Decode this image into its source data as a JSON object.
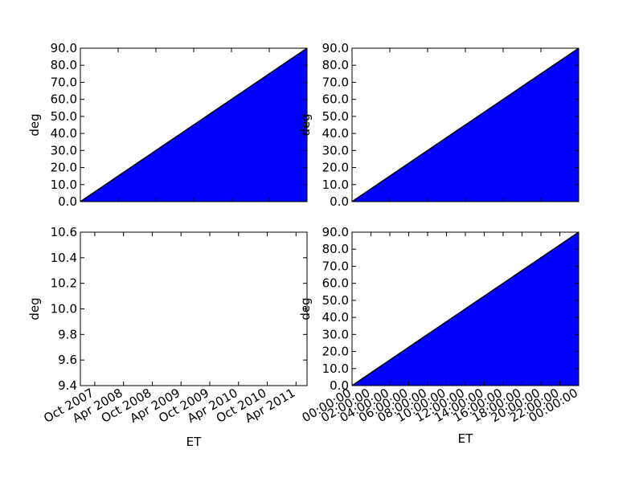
{
  "figure": {
    "background": "#ffffff",
    "fill_color": "#0000ff",
    "line_color": "#000000"
  },
  "chart_data": [
    {
      "id": "top-left",
      "type": "area",
      "xlabel": "",
      "ylabel": "deg",
      "ylim": [
        0,
        90
      ],
      "yticks": [
        "0.0",
        "10.0",
        "20.0",
        "30.0",
        "40.0",
        "50.0",
        "60.0",
        "70.0",
        "80.0",
        "90.0"
      ],
      "x_tick_labels_shown": false,
      "series": [
        {
          "x": [
            0,
            1
          ],
          "y": [
            0,
            90
          ]
        }
      ]
    },
    {
      "id": "top-right",
      "type": "area",
      "xlabel": "",
      "ylabel": "deg",
      "ylim": [
        0,
        90
      ],
      "yticks": [
        "0.0",
        "10.0",
        "20.0",
        "30.0",
        "40.0",
        "50.0",
        "60.0",
        "70.0",
        "80.0",
        "90.0"
      ],
      "x_tick_labels_shown": false,
      "series": [
        {
          "x": [
            0,
            1
          ],
          "y": [
            0,
            90
          ]
        }
      ]
    },
    {
      "id": "bottom-left",
      "type": "area",
      "xlabel": "ET",
      "ylabel": "deg",
      "ylim": [
        9.4,
        10.6
      ],
      "yticks": [
        "9.4",
        "9.6",
        "9.8",
        "10.0",
        "10.2",
        "10.4",
        "10.6"
      ],
      "xlim": [
        "2007-07",
        "2011-06"
      ],
      "xticks": [
        "Oct 2007",
        "Apr 2008",
        "Oct 2008",
        "Apr 2009",
        "Oct 2009",
        "Apr 2010",
        "Oct 2010",
        "Apr 2011"
      ],
      "series": []
    },
    {
      "id": "bottom-right",
      "type": "area",
      "xlabel": "ET",
      "ylabel": "deg",
      "ylim": [
        0,
        90
      ],
      "yticks": [
        "0.0",
        "10.0",
        "20.0",
        "30.0",
        "40.0",
        "50.0",
        "60.0",
        "70.0",
        "80.0",
        "90.0"
      ],
      "xticks": [
        "00:00:00",
        "02:00:00",
        "04:00:00",
        "06:00:00",
        "08:00:00",
        "10:00:00",
        "12:00:00",
        "14:00:00",
        "16:00:00",
        "18:00:00",
        "20:00:00",
        "22:00:00",
        "00:00:00"
      ],
      "series": [
        {
          "x": [
            "00:00:00",
            "00:00:00"
          ],
          "y": [
            0,
            90
          ]
        }
      ]
    }
  ]
}
